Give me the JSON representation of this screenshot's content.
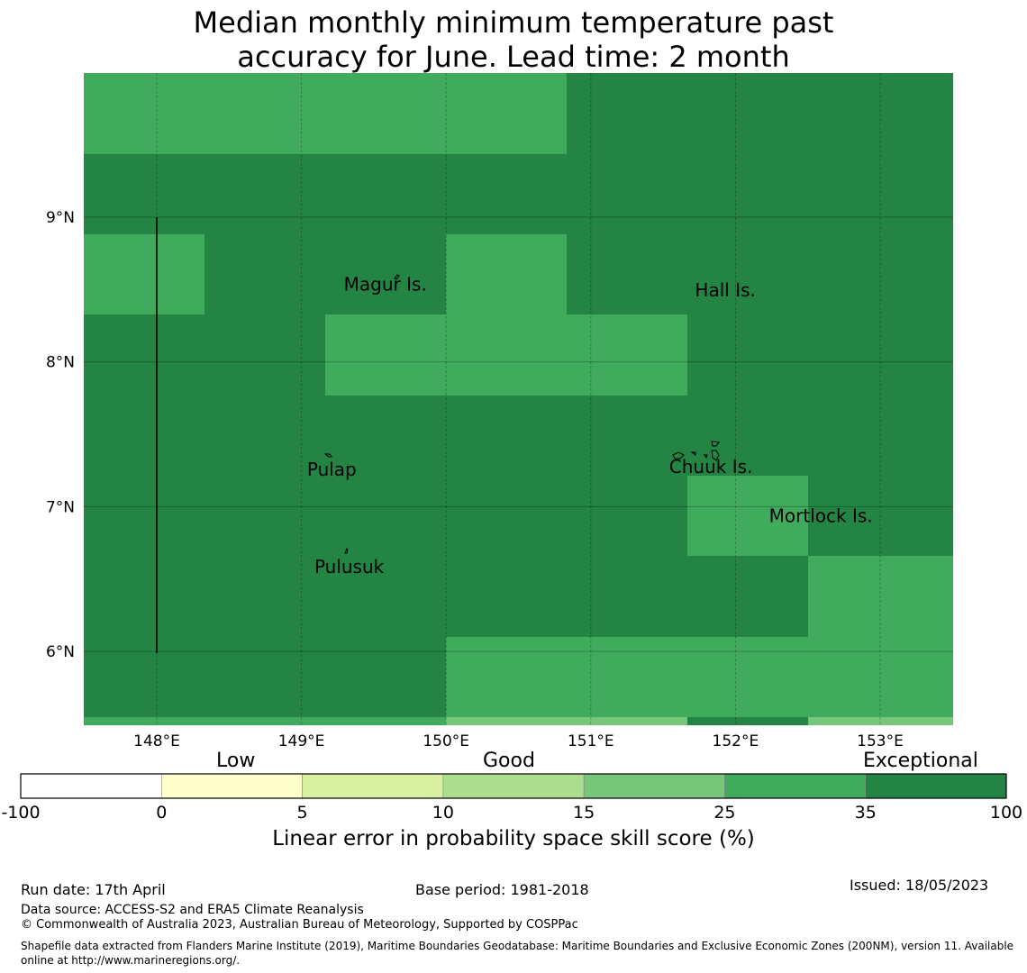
{
  "title_line1": "Median monthly minimum temperature past",
  "title_line2": "accuracy for June. Lead time: 2 month",
  "map": {
    "lon_ticks": [
      "148°E",
      "149°E",
      "150°E",
      "151°E",
      "152°E",
      "153°E"
    ],
    "lat_ticks": [
      "9°N",
      "8°N",
      "7°N",
      "6°N"
    ],
    "places": [
      {
        "name": "Magur Is.",
        "lon": 149.58,
        "lat": 8.53
      },
      {
        "name": "Hall Is.",
        "lon": 151.93,
        "lat": 8.49
      },
      {
        "name": "Pulap",
        "lon": 149.21,
        "lat": 7.25
      },
      {
        "name": "Chuuk Is.",
        "lon": 151.83,
        "lat": 7.27
      },
      {
        "name": "Mortlock Is.",
        "lon": 152.59,
        "lat": 6.93
      },
      {
        "name": "Pulusuk",
        "lon": 149.33,
        "lat": 6.58
      }
    ],
    "colors": {
      "exceptional": "#238443",
      "good_high": "#41ab5d",
      "good_mid": "#78c679",
      "good_low": "#addd8e",
      "low_high": "#d9f0a3",
      "low_low": "#ffffcc",
      "none": "#ffffff"
    }
  },
  "legend": {
    "categories": [
      "Low",
      "Good",
      "Exceptional"
    ],
    "bounds": [
      "-100",
      "0",
      "5",
      "10",
      "15",
      "25",
      "35",
      "100"
    ],
    "colors": [
      "#ffffff",
      "#ffffcc",
      "#d9f0a3",
      "#addd8e",
      "#78c679",
      "#41ab5d",
      "#238443"
    ],
    "label": "Linear error in probability space skill score (%)"
  },
  "footer": {
    "run_date": "Run date: 17th April",
    "base_period": "Base period: 1981-2018",
    "issued": "Issued: 18/05/2023",
    "data_source": "Data source: ACCESS-S2 and ERA5 Climate Reanalysis",
    "copyright": "© Commonwealth of Australia 2023, Australian Bureau of Meteorology, Supported by COSPPac",
    "shapefile": "Shapefile data extracted from Flanders Marine Institute (2019), Maritime Boundaries Geodatabase: Maritime Boundaries and Exclusive Economic Zones (200NM), version 11. Available online at http://www.marineregions.org/."
  }
}
